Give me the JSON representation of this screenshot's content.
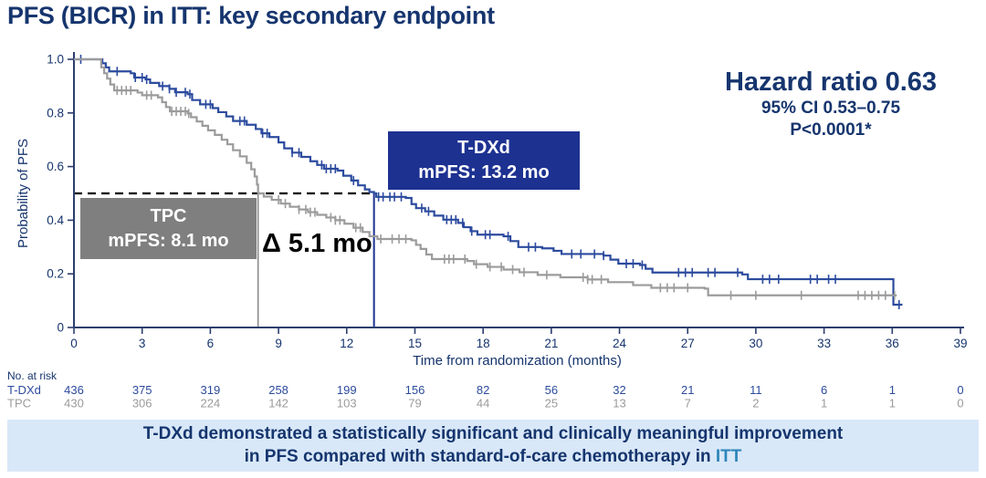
{
  "title": "PFS (BICR) in ITT: key secondary endpoint",
  "stats": {
    "hazard_ratio": "Hazard ratio 0.63",
    "confidence_interval": "95% CI 0.53–0.75",
    "p_value": "P<0.0001*"
  },
  "annotations": {
    "tdxd_box": {
      "line1": "T-DXd",
      "line2": "mPFS: 13.2 mo",
      "bg": "#1d3191"
    },
    "tpc_box": {
      "line1": "TPC",
      "line2": "mPFS: 8.1 mo",
      "bg": "#7f7f7f"
    },
    "delta": "Δ 5.1 mo"
  },
  "banner": {
    "line1": "T-DXd demonstrated a statistically significant and clinically meaningful improvement",
    "line2_prefix": "in PFS compared with standard-of-care chemotherapy in ",
    "line2_highlight": "ITT",
    "bg": "#d9e8f8",
    "text_color": "#15356e",
    "highlight_color": "#2e86ba"
  },
  "colors": {
    "navy_text": "#16356e",
    "axis": "#2c3e6e",
    "curve_tdxd": "#2c4b9e",
    "curve_tpc": "#9b9b9b",
    "median_dash": "#000000"
  },
  "chart_data": {
    "type": "line",
    "subtype": "kaplan-meier-step",
    "xlabel": "Time from randomization (months)",
    "ylabel": "Probability of PFS",
    "xlim": [
      0,
      39
    ],
    "ylim": [
      0,
      1.0
    ],
    "xticks": [
      0,
      3,
      6,
      9,
      12,
      15,
      18,
      21,
      24,
      27,
      30,
      33,
      36,
      39
    ],
    "yticks": [
      1.0,
      0.8,
      0.6,
      0.4,
      0.2,
      0
    ],
    "ytick_labels": [
      "1.0",
      "0.8",
      "0.6",
      "0.4",
      "0.2",
      "0"
    ],
    "grid": false,
    "median_reference": {
      "prob": 0.5,
      "tdxd_median_months": 13.2,
      "tpc_median_months": 8.1
    },
    "series": [
      {
        "name": "T-DXd",
        "color": "#2c4b9e",
        "median_mpfs_months": 13.2,
        "points": [
          [
            0,
            1.0
          ],
          [
            1.1,
            1.0
          ],
          [
            1.25,
            0.985
          ],
          [
            1.4,
            0.97
          ],
          [
            1.55,
            0.955
          ],
          [
            2.5,
            0.948
          ],
          [
            2.65,
            0.932
          ],
          [
            3.15,
            0.925
          ],
          [
            3.35,
            0.912
          ],
          [
            3.75,
            0.9
          ],
          [
            4.2,
            0.89
          ],
          [
            4.45,
            0.877
          ],
          [
            5.0,
            0.87
          ],
          [
            5.2,
            0.848
          ],
          [
            5.55,
            0.832
          ],
          [
            6.1,
            0.818
          ],
          [
            6.35,
            0.803
          ],
          [
            6.7,
            0.787
          ],
          [
            7.0,
            0.77
          ],
          [
            7.6,
            0.756
          ],
          [
            8.0,
            0.74
          ],
          [
            8.25,
            0.724
          ],
          [
            8.6,
            0.71
          ],
          [
            9.0,
            0.69
          ],
          [
            9.25,
            0.668
          ],
          [
            9.6,
            0.652
          ],
          [
            10.0,
            0.636
          ],
          [
            10.4,
            0.62
          ],
          [
            10.7,
            0.606
          ],
          [
            11.0,
            0.592
          ],
          [
            11.6,
            0.585
          ],
          [
            11.85,
            0.566
          ],
          [
            12.2,
            0.548
          ],
          [
            12.5,
            0.53
          ],
          [
            12.8,
            0.515
          ],
          [
            13.0,
            0.505
          ],
          [
            13.2,
            0.5
          ],
          [
            13.3,
            0.487
          ],
          [
            14.6,
            0.483
          ],
          [
            14.85,
            0.46
          ],
          [
            15.05,
            0.445
          ],
          [
            15.45,
            0.433
          ],
          [
            15.85,
            0.417
          ],
          [
            16.25,
            0.402
          ],
          [
            16.9,
            0.39
          ],
          [
            17.15,
            0.374
          ],
          [
            17.45,
            0.359
          ],
          [
            17.75,
            0.346
          ],
          [
            18.9,
            0.34
          ],
          [
            19.2,
            0.322
          ],
          [
            19.55,
            0.3
          ],
          [
            20.6,
            0.295
          ],
          [
            21.1,
            0.286
          ],
          [
            21.45,
            0.274
          ],
          [
            23.3,
            0.268
          ],
          [
            23.6,
            0.253
          ],
          [
            23.95,
            0.238
          ],
          [
            24.9,
            0.233
          ],
          [
            25.15,
            0.219
          ],
          [
            25.45,
            0.205
          ],
          [
            29.4,
            0.198
          ],
          [
            29.65,
            0.18
          ],
          [
            35.9,
            0.18
          ],
          [
            36.05,
            0.085
          ],
          [
            36.45,
            0.085
          ]
        ],
        "censor_ticks": [
          0.3,
          1.9,
          2.7,
          3.0,
          3.2,
          3.9,
          4.2,
          4.5,
          4.9,
          5.1,
          5.8,
          6.0,
          7.3,
          7.5,
          8.3,
          8.5,
          9.6,
          9.9,
          10.9,
          11.1,
          11.3,
          11.5,
          12.3,
          13.4,
          13.6,
          13.9,
          14.1,
          14.4,
          15.3,
          15.6,
          16.4,
          16.6,
          16.8,
          17.1,
          17.5,
          18.1,
          18.3,
          19.1,
          20.0,
          20.3,
          21.9,
          22.3,
          22.9,
          23.3,
          24.3,
          24.6,
          25.0,
          26.6,
          26.9,
          27.2,
          27.9,
          28.2,
          29.2,
          30.3,
          30.6,
          31.0,
          32.4,
          32.7,
          33.2,
          33.5,
          36.3
        ]
      },
      {
        "name": "TPC",
        "color": "#9b9b9b",
        "median_mpfs_months": 8.1,
        "points": [
          [
            0,
            1.0
          ],
          [
            1.05,
            1.0
          ],
          [
            1.2,
            0.97
          ],
          [
            1.33,
            0.948
          ],
          [
            1.46,
            0.928
          ],
          [
            1.6,
            0.906
          ],
          [
            1.77,
            0.884
          ],
          [
            2.8,
            0.876
          ],
          [
            3.0,
            0.866
          ],
          [
            3.7,
            0.858
          ],
          [
            3.88,
            0.84
          ],
          [
            4.05,
            0.822
          ],
          [
            4.22,
            0.806
          ],
          [
            5.0,
            0.798
          ],
          [
            5.15,
            0.784
          ],
          [
            5.4,
            0.768
          ],
          [
            5.65,
            0.752
          ],
          [
            5.9,
            0.735
          ],
          [
            6.2,
            0.718
          ],
          [
            6.5,
            0.7
          ],
          [
            6.75,
            0.683
          ],
          [
            7.0,
            0.661
          ],
          [
            7.3,
            0.638
          ],
          [
            7.6,
            0.614
          ],
          [
            7.8,
            0.59
          ],
          [
            7.95,
            0.563
          ],
          [
            8.05,
            0.533
          ],
          [
            8.1,
            0.5
          ],
          [
            8.35,
            0.488
          ],
          [
            8.7,
            0.476
          ],
          [
            9.1,
            0.462
          ],
          [
            9.5,
            0.45
          ],
          [
            9.9,
            0.44
          ],
          [
            10.3,
            0.43
          ],
          [
            10.7,
            0.42
          ],
          [
            11.1,
            0.41
          ],
          [
            11.5,
            0.4
          ],
          [
            11.9,
            0.387
          ],
          [
            12.3,
            0.372
          ],
          [
            12.7,
            0.356
          ],
          [
            13.0,
            0.34
          ],
          [
            13.35,
            0.33
          ],
          [
            14.85,
            0.325
          ],
          [
            15.05,
            0.308
          ],
          [
            15.25,
            0.293
          ],
          [
            15.5,
            0.272
          ],
          [
            15.75,
            0.255
          ],
          [
            17.3,
            0.248
          ],
          [
            17.6,
            0.236
          ],
          [
            18.2,
            0.226
          ],
          [
            18.9,
            0.216
          ],
          [
            19.6,
            0.206
          ],
          [
            20.4,
            0.196
          ],
          [
            21.4,
            0.187
          ],
          [
            22.6,
            0.179
          ],
          [
            23.5,
            0.169
          ],
          [
            24.6,
            0.158
          ],
          [
            25.4,
            0.148
          ],
          [
            27.75,
            0.145
          ],
          [
            27.9,
            0.12
          ],
          [
            36.2,
            0.12
          ]
        ],
        "censor_ticks": [
          1.9,
          2.1,
          2.3,
          2.5,
          3.2,
          3.4,
          4.3,
          4.5,
          4.7,
          4.9,
          5.05,
          9.0,
          9.3,
          9.9,
          10.2,
          10.4,
          10.6,
          11.3,
          11.5,
          11.7,
          12.4,
          12.6,
          13.5,
          14.0,
          14.3,
          14.6,
          16.3,
          16.5,
          16.7,
          17.2,
          17.7,
          18.3,
          18.8,
          19.3,
          19.8,
          20.8,
          22.4,
          22.6,
          22.8,
          23.2,
          25.8,
          26.1,
          26.4,
          27.0,
          28.9,
          30.0,
          32.0,
          34.5,
          34.8,
          35.1,
          35.4,
          35.7,
          36.1
        ]
      }
    ],
    "no_at_risk": {
      "label": "No. at risk",
      "rows": [
        {
          "name": "T-DXd",
          "color": "#2c4b9e",
          "values": [
            "436",
            "375",
            "319",
            "258",
            "199",
            "156",
            "82",
            "56",
            "32",
            "21",
            "11",
            "6",
            "1",
            "0"
          ]
        },
        {
          "name": "TPC",
          "color": "#9b9b9b",
          "values": [
            "430",
            "306",
            "224",
            "142",
            "103",
            "79",
            "44",
            "25",
            "13",
            "7",
            "2",
            "1",
            "1",
            "0"
          ]
        }
      ]
    }
  }
}
